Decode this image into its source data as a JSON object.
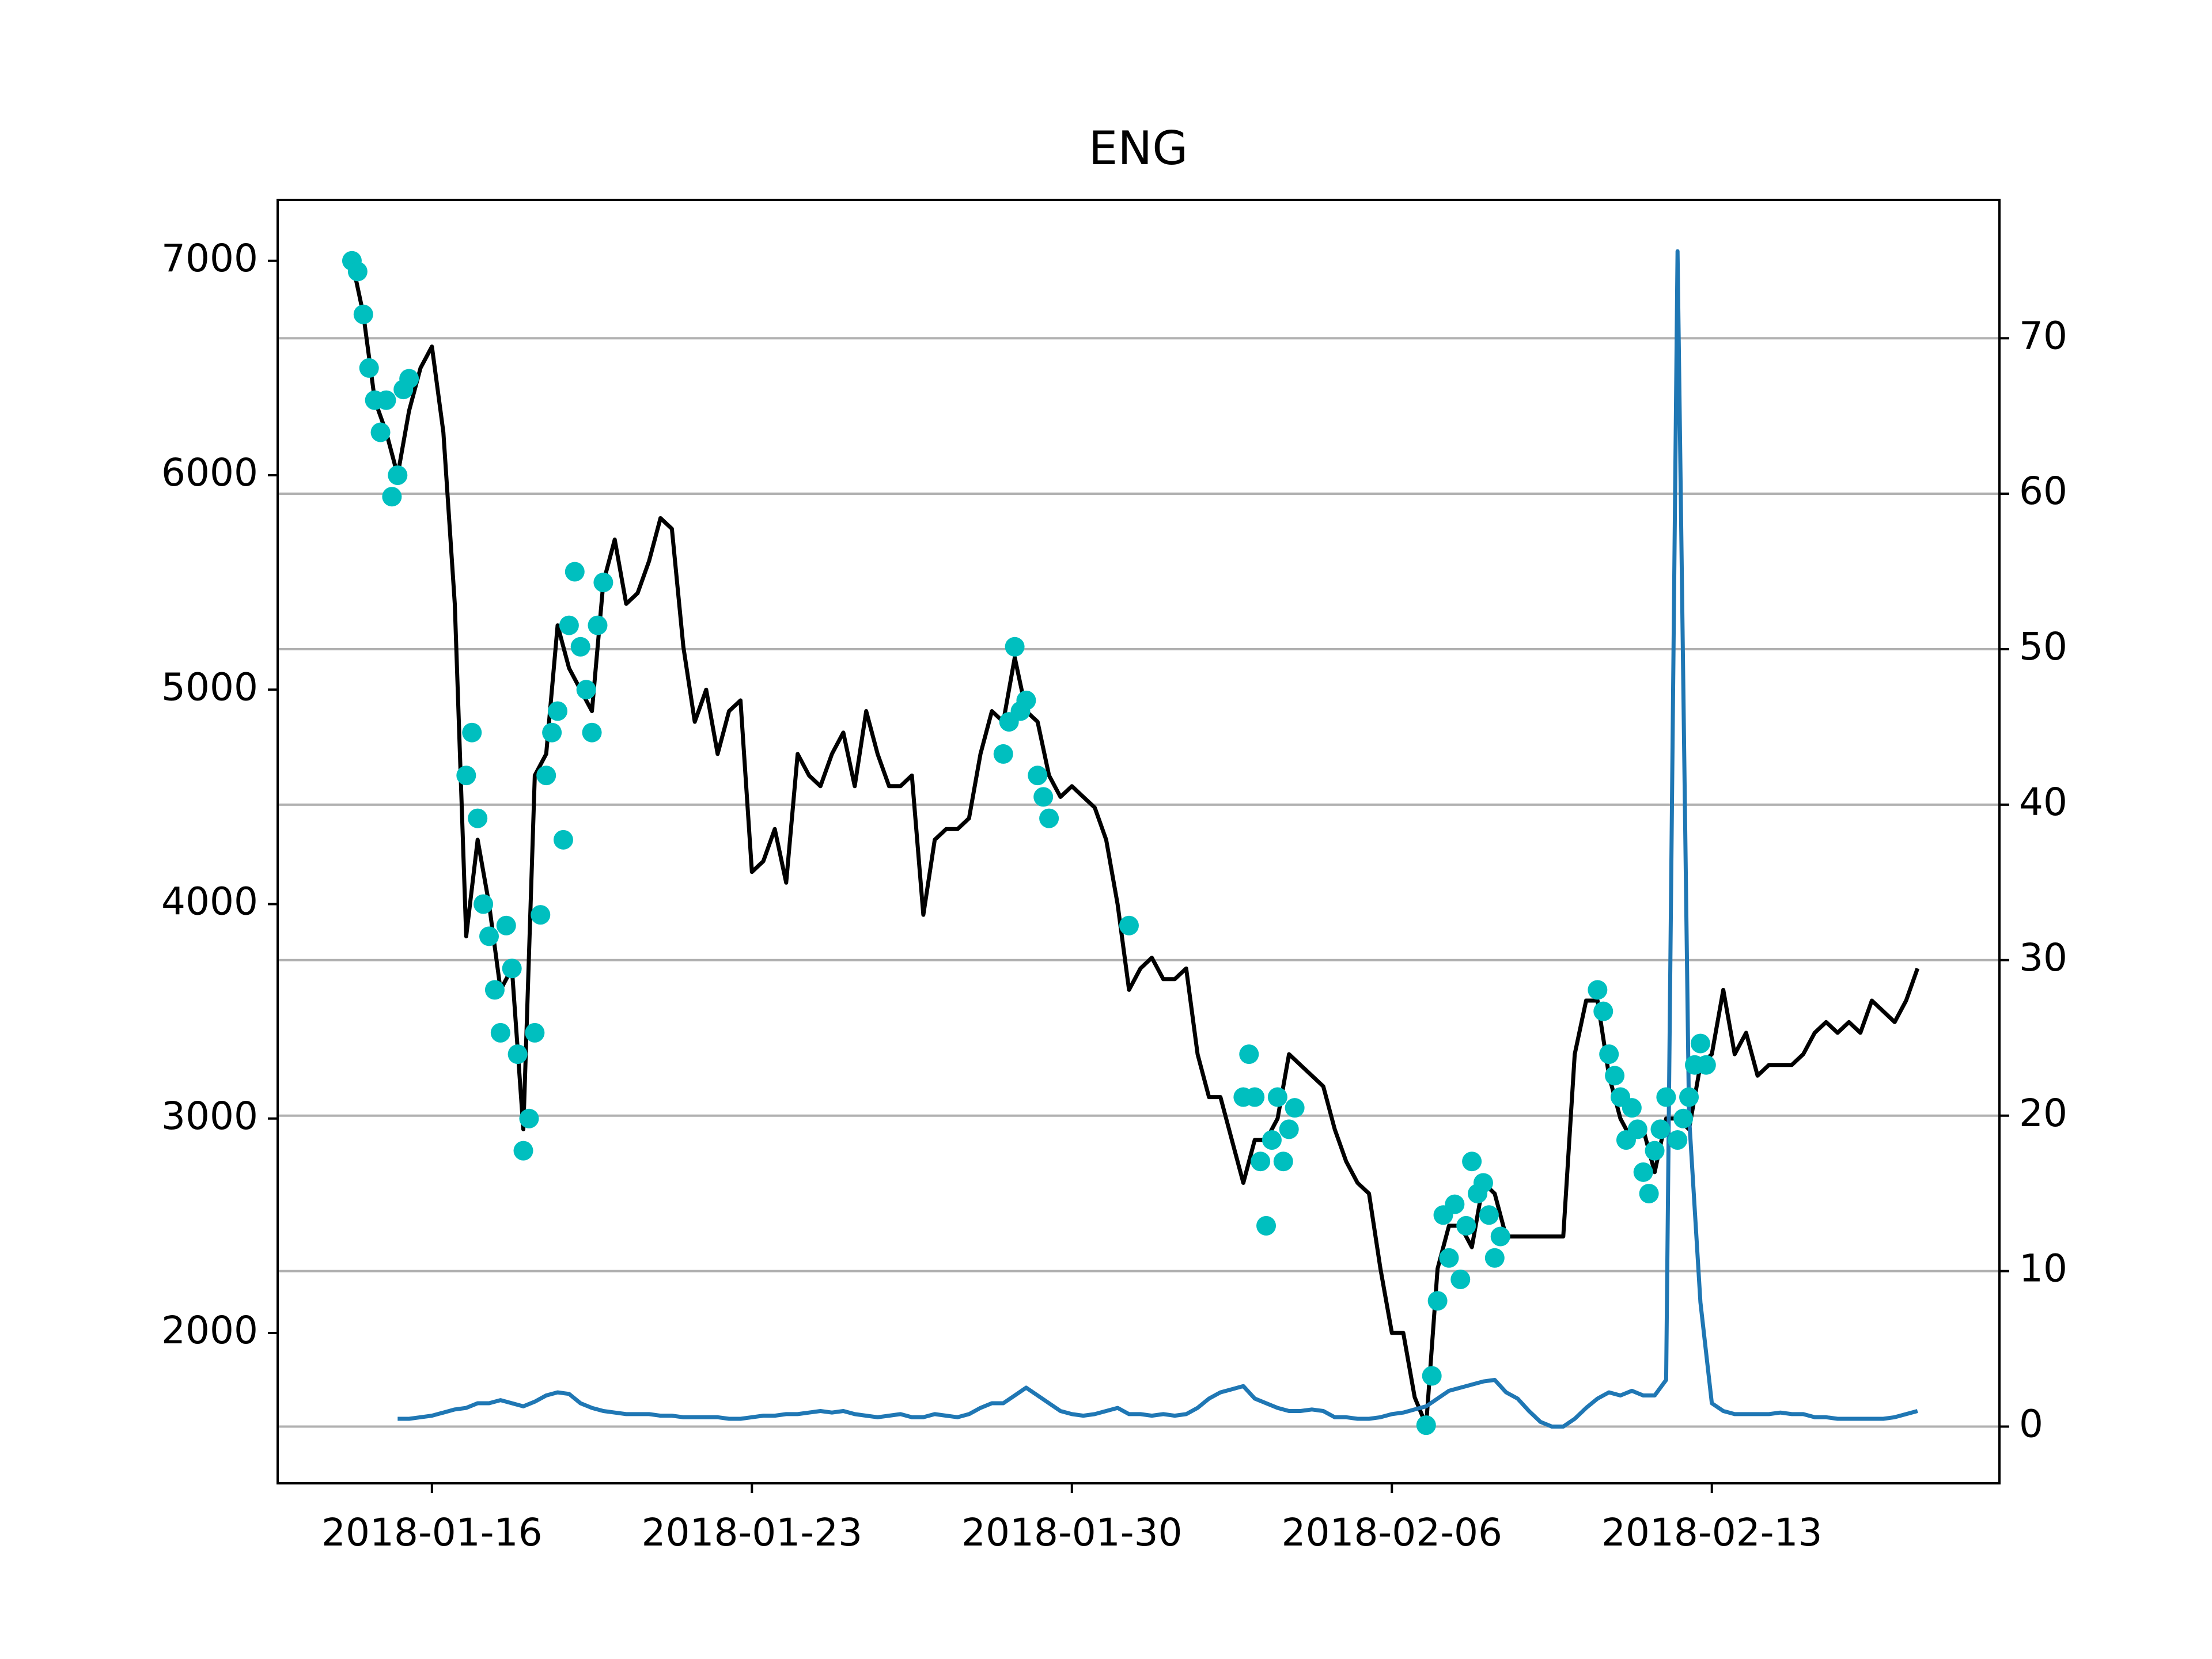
{
  "chart_data": {
    "type": "line",
    "title": "ENG",
    "x": [
      "2018-01-14 06:00",
      "2018-01-14 12:00",
      "2018-01-14 18:00",
      "2018-01-15 00:00",
      "2018-01-15 06:00",
      "2018-01-15 12:00",
      "2018-01-15 18:00",
      "2018-01-16 00:00",
      "2018-01-16 06:00",
      "2018-01-16 12:00",
      "2018-01-16 18:00",
      "2018-01-17 00:00",
      "2018-01-17 06:00",
      "2018-01-17 12:00",
      "2018-01-17 18:00",
      "2018-01-18 00:00",
      "2018-01-18 06:00",
      "2018-01-18 12:00",
      "2018-01-18 18:00",
      "2018-01-19 00:00",
      "2018-01-19 06:00",
      "2018-01-19 12:00",
      "2018-01-19 18:00",
      "2018-01-20 00:00",
      "2018-01-20 06:00",
      "2018-01-20 12:00",
      "2018-01-20 18:00",
      "2018-01-21 00:00",
      "2018-01-21 06:00",
      "2018-01-21 12:00",
      "2018-01-21 18:00",
      "2018-01-22 00:00",
      "2018-01-22 06:00",
      "2018-01-22 12:00",
      "2018-01-22 18:00",
      "2018-01-23 00:00",
      "2018-01-23 06:00",
      "2018-01-23 12:00",
      "2018-01-23 18:00",
      "2018-01-24 00:00",
      "2018-01-24 06:00",
      "2018-01-24 12:00",
      "2018-01-24 18:00",
      "2018-01-25 00:00",
      "2018-01-25 06:00",
      "2018-01-25 12:00",
      "2018-01-25 18:00",
      "2018-01-26 00:00",
      "2018-01-26 06:00",
      "2018-01-26 12:00",
      "2018-01-26 18:00",
      "2018-01-27 00:00",
      "2018-01-27 06:00",
      "2018-01-27 12:00",
      "2018-01-27 18:00",
      "2018-01-28 00:00",
      "2018-01-28 06:00",
      "2018-01-28 12:00",
      "2018-01-28 18:00",
      "2018-01-29 00:00",
      "2018-01-29 06:00",
      "2018-01-29 12:00",
      "2018-01-29 18:00",
      "2018-01-30 00:00",
      "2018-01-30 06:00",
      "2018-01-30 12:00",
      "2018-01-30 18:00",
      "2018-01-31 00:00",
      "2018-01-31 06:00",
      "2018-01-31 12:00",
      "2018-01-31 18:00",
      "2018-02-01 00:00",
      "2018-02-01 06:00",
      "2018-02-01 12:00",
      "2018-02-01 18:00",
      "2018-02-02 00:00",
      "2018-02-02 06:00",
      "2018-02-02 12:00",
      "2018-02-02 18:00",
      "2018-02-03 00:00",
      "2018-02-03 06:00",
      "2018-02-03 12:00",
      "2018-02-03 18:00",
      "2018-02-04 00:00",
      "2018-02-04 06:00",
      "2018-02-04 12:00",
      "2018-02-04 18:00",
      "2018-02-05 00:00",
      "2018-02-05 06:00",
      "2018-02-05 12:00",
      "2018-02-05 18:00",
      "2018-02-06 00:00",
      "2018-02-06 06:00",
      "2018-02-06 12:00",
      "2018-02-06 18:00",
      "2018-02-07 00:00",
      "2018-02-07 06:00",
      "2018-02-07 12:00",
      "2018-02-07 18:00",
      "2018-02-08 00:00",
      "2018-02-08 06:00",
      "2018-02-08 12:00",
      "2018-02-08 18:00",
      "2018-02-09 00:00",
      "2018-02-09 06:00",
      "2018-02-09 12:00",
      "2018-02-09 18:00",
      "2018-02-10 00:00",
      "2018-02-10 06:00",
      "2018-02-10 12:00",
      "2018-02-10 18:00",
      "2018-02-11 00:00",
      "2018-02-11 06:00",
      "2018-02-11 12:00",
      "2018-02-11 18:00",
      "2018-02-12 00:00",
      "2018-02-12 06:00",
      "2018-02-12 12:00",
      "2018-02-12 18:00",
      "2018-02-13 00:00",
      "2018-02-13 06:00",
      "2018-02-13 12:00",
      "2018-02-13 18:00",
      "2018-02-14 00:00",
      "2018-02-14 06:00",
      "2018-02-14 12:00",
      "2018-02-14 18:00",
      "2018-02-15 00:00",
      "2018-02-15 06:00",
      "2018-02-15 12:00",
      "2018-02-15 18:00",
      "2018-02-16 00:00",
      "2018-02-16 06:00",
      "2018-02-16 12:00",
      "2018-02-16 18:00",
      "2018-02-17 00:00",
      "2018-02-17 06:00",
      "2018-02-17 12:00"
    ],
    "series": [
      {
        "type": "line",
        "color": "#000000",
        "values": [
          7000,
          6750,
          6350,
          6200,
          6000,
          6300,
          6500,
          6600,
          6200,
          5400,
          3850,
          4300,
          4000,
          3600,
          3700,
          2950,
          4600,
          4700,
          5300,
          5100,
          5000,
          4900,
          5500,
          5700,
          5400,
          5450,
          5600,
          5800,
          5750,
          5200,
          4850,
          5000,
          4700,
          4900,
          4950,
          4150,
          4200,
          4350,
          4100,
          4700,
          4600,
          4550,
          4700,
          4800,
          4550,
          4900,
          4700,
          4550,
          4550,
          4600,
          3950,
          4300,
          4350,
          4350,
          4400,
          4700,
          4900,
          4850,
          5150,
          4900,
          4850,
          4600,
          4500,
          4550,
          4500,
          4450,
          4300,
          4000,
          3600,
          3700,
          3750,
          3650,
          3650,
          3700,
          3300,
          3100,
          3100,
          2900,
          2700,
          2900,
          2900,
          3000,
          3300,
          3250,
          3200,
          3150,
          2950,
          2800,
          2700,
          2650,
          2300,
          2000,
          2000,
          1700,
          1570,
          2300,
          2500,
          2500,
          2400,
          2700,
          2650,
          2450,
          2450,
          2450,
          2450,
          2450,
          2450,
          3300,
          3550,
          3550,
          3200,
          3000,
          2900,
          2950,
          2750,
          3000,
          3000,
          2950,
          3250,
          3300,
          3600,
          3300,
          3400,
          3200,
          3250,
          3250,
          3250,
          3300,
          3400,
          3450,
          3400,
          3450,
          3400,
          3550,
          3500,
          3450,
          3550,
          3700
        ]
      },
      {
        "type": "line",
        "axis": "y2",
        "color": "#1f77b4",
        "values": [
          null,
          null,
          null,
          null,
          0.5,
          0.5,
          0.6,
          0.7,
          0.9,
          1.1,
          1.2,
          1.5,
          1.5,
          1.7,
          1.5,
          1.3,
          1.6,
          2.0,
          2.2,
          2.1,
          1.5,
          1.2,
          1.0,
          0.9,
          0.8,
          0.8,
          0.8,
          0.7,
          0.7,
          0.6,
          0.6,
          0.6,
          0.6,
          0.5,
          0.5,
          0.6,
          0.7,
          0.7,
          0.8,
          0.8,
          0.9,
          1.0,
          0.9,
          1.0,
          0.8,
          0.7,
          0.6,
          0.7,
          0.8,
          0.6,
          0.6,
          0.8,
          0.7,
          0.6,
          0.8,
          1.2,
          1.5,
          1.5,
          2.0,
          2.5,
          2.0,
          1.5,
          1.0,
          0.8,
          0.7,
          0.8,
          1.0,
          1.2,
          0.8,
          0.8,
          0.7,
          0.8,
          0.7,
          0.8,
          1.2,
          1.8,
          2.2,
          2.4,
          2.6,
          1.8,
          1.5,
          1.2,
          1.0,
          1.0,
          1.1,
          1.0,
          0.6,
          0.6,
          0.5,
          0.5,
          0.6,
          0.8,
          0.9,
          1.1,
          1.3,
          1.8,
          2.3,
          2.5,
          2.7,
          2.9,
          3.0,
          2.2,
          1.8,
          1.0,
          0.3,
          0.0,
          0.0,
          0.5,
          1.2,
          1.8,
          2.2,
          2.0,
          2.3,
          2.0,
          2.0,
          3.0,
          75.6,
          20,
          8,
          1.5,
          1.0,
          0.8,
          0.8,
          0.8,
          0.8,
          0.9,
          0.8,
          0.8,
          0.6,
          0.6,
          0.5,
          0.5,
          0.5,
          0.5,
          0.5,
          0.6,
          0.8,
          1.0
        ]
      },
      {
        "type": "scatter",
        "color": "#00bfbf",
        "x": [
          "2018-01-14 06:00",
          "2018-01-14 09:00",
          "2018-01-14 12:00",
          "2018-01-14 15:00",
          "2018-01-14 18:00",
          "2018-01-14 21:00",
          "2018-01-15 00:00",
          "2018-01-15 03:00",
          "2018-01-15 06:00",
          "2018-01-15 09:00",
          "2018-01-15 12:00",
          "2018-01-16 18:00",
          "2018-01-16 21:00",
          "2018-01-17 00:00",
          "2018-01-17 03:00",
          "2018-01-17 06:00",
          "2018-01-17 09:00",
          "2018-01-17 12:00",
          "2018-01-17 15:00",
          "2018-01-17 18:00",
          "2018-01-17 21:00",
          "2018-01-18 00:00",
          "2018-01-18 03:00",
          "2018-01-18 06:00",
          "2018-01-18 09:00",
          "2018-01-18 12:00",
          "2018-01-18 15:00",
          "2018-01-18 18:00",
          "2018-01-18 21:00",
          "2018-01-19 00:00",
          "2018-01-19 03:00",
          "2018-01-19 06:00",
          "2018-01-19 09:00",
          "2018-01-19 12:00",
          "2018-01-19 15:00",
          "2018-01-19 18:00",
          "2018-01-28 12:00",
          "2018-01-28 15:00",
          "2018-01-28 18:00",
          "2018-01-28 21:00",
          "2018-01-29 00:00",
          "2018-01-29 06:00",
          "2018-01-29 09:00",
          "2018-01-29 12:00",
          "2018-01-31 06:00",
          "2018-02-02 18:00",
          "2018-02-02 21:00",
          "2018-02-03 00:00",
          "2018-02-03 03:00",
          "2018-02-03 06:00",
          "2018-02-03 09:00",
          "2018-02-03 12:00",
          "2018-02-03 15:00",
          "2018-02-03 18:00",
          "2018-02-03 21:00",
          "2018-02-06 18:00",
          "2018-02-06 21:00",
          "2018-02-07 00:00",
          "2018-02-07 03:00",
          "2018-02-07 06:00",
          "2018-02-07 09:00",
          "2018-02-07 12:00",
          "2018-02-07 15:00",
          "2018-02-07 18:00",
          "2018-02-07 21:00",
          "2018-02-08 00:00",
          "2018-02-08 03:00",
          "2018-02-08 06:00",
          "2018-02-08 09:00",
          "2018-02-10 12:00",
          "2018-02-10 15:00",
          "2018-02-10 18:00",
          "2018-02-10 21:00",
          "2018-02-11 00:00",
          "2018-02-11 03:00",
          "2018-02-11 06:00",
          "2018-02-11 09:00",
          "2018-02-11 12:00",
          "2018-02-11 15:00",
          "2018-02-11 18:00",
          "2018-02-11 21:00",
          "2018-02-12 00:00",
          "2018-02-12 06:00",
          "2018-02-12 09:00",
          "2018-02-12 12:00",
          "2018-02-12 15:00",
          "2018-02-12 18:00",
          "2018-02-12 21:00"
        ],
        "values": [
          7000,
          6950,
          6750,
          6500,
          6350,
          6200,
          6350,
          5900,
          6000,
          6400,
          6450,
          4600,
          4800,
          4400,
          4000,
          3850,
          3600,
          3400,
          3900,
          3700,
          3300,
          2850,
          3000,
          3400,
          3950,
          4600,
          4800,
          4900,
          4300,
          5300,
          5550,
          5200,
          5000,
          4800,
          5300,
          5500,
          4700,
          4850,
          5200,
          4900,
          4950,
          4600,
          4500,
          4400,
          3900,
          3100,
          3300,
          3100,
          2800,
          2500,
          2900,
          3100,
          2800,
          2950,
          3050,
          1570,
          1800,
          2150,
          2550,
          2350,
          2600,
          2250,
          2500,
          2800,
          2650,
          2700,
          2550,
          2350,
          2450,
          3600,
          3500,
          3300,
          3200,
          3100,
          2900,
          3050,
          2950,
          2750,
          2650,
          2850,
          2950,
          3100,
          2900,
          3000,
          3100,
          3250,
          3350,
          3250
        ]
      }
    ],
    "xlim": [
      "2018-01-12 15:00",
      "2018-02-19 07:00"
    ],
    "xticks": [
      "2018-01-16",
      "2018-01-23",
      "2018-01-30",
      "2018-02-06",
      "2018-02-13"
    ],
    "ylim": [
      1299,
      7284
    ],
    "yticks": [
      2000,
      3000,
      4000,
      5000,
      6000,
      7000
    ],
    "y2lim": [
      -3.65,
      78.9
    ],
    "y2ticks": [
      0,
      10,
      20,
      30,
      40,
      50,
      60,
      70
    ],
    "grid": "y2"
  }
}
